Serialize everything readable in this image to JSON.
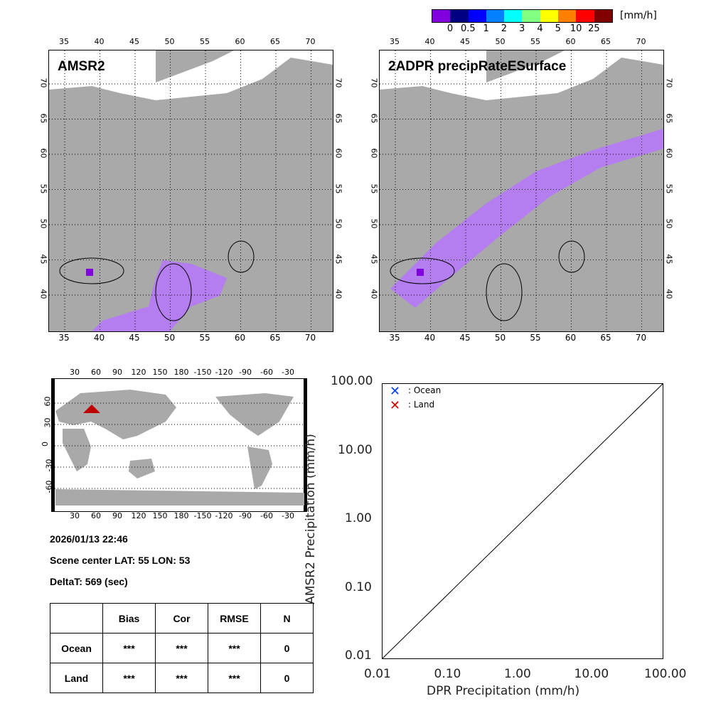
{
  "colorbar": {
    "unit": "[mm/h]",
    "labels": [
      "0",
      "0.5",
      "1",
      "2",
      "3",
      "4",
      "5",
      "10",
      "25"
    ],
    "colors": [
      "#8000e0",
      "#000080",
      "#0000ff",
      "#0080ff",
      "#00ffff",
      "#80ff80",
      "#ffff00",
      "#ff8000",
      "#ff0000",
      "#800000"
    ]
  },
  "maps": [
    {
      "title": "AMSR2"
    },
    {
      "title": "2ADPR precipRateESurface"
    }
  ],
  "lon_ticks": [
    "35",
    "40",
    "45",
    "50",
    "55",
    "60",
    "65",
    "70"
  ],
  "lat_ticks": [
    "70",
    "65",
    "60",
    "55",
    "50",
    "45",
    "40"
  ],
  "world": {
    "lon_ticks": [
      "30",
      "60",
      "90",
      "120",
      "150",
      "180",
      "-150",
      "-120",
      "-90",
      "-60",
      "-30"
    ],
    "lat_ticks": [
      "60",
      "30",
      "0",
      "-30",
      "-60"
    ],
    "marker_color": "#c00000"
  },
  "info": {
    "datetime": "2026/01/13 22:46",
    "scene_center": "Scene center LAT: 55   LON:  53",
    "deltat": "DeltaT:  569 (sec)"
  },
  "table": {
    "headers": [
      "",
      "Bias",
      "Cor",
      "RMSE",
      "N"
    ],
    "rows": [
      [
        "Ocean",
        "***",
        "***",
        "***",
        "0"
      ],
      [
        "Land",
        "***",
        "***",
        "***",
        "0"
      ]
    ]
  },
  "scatter": {
    "xlabel": "DPR Precipitation (mm/h)",
    "ylabel": "AMSR2 Precipitation (mm/h)",
    "ticks": [
      "0.01",
      "0.10",
      "1.00",
      "10.00",
      "100.00"
    ],
    "legend": [
      {
        "label": ": Ocean",
        "color": "#0040ff"
      },
      {
        "label": ": Land",
        "color": "#d00000"
      }
    ]
  }
}
